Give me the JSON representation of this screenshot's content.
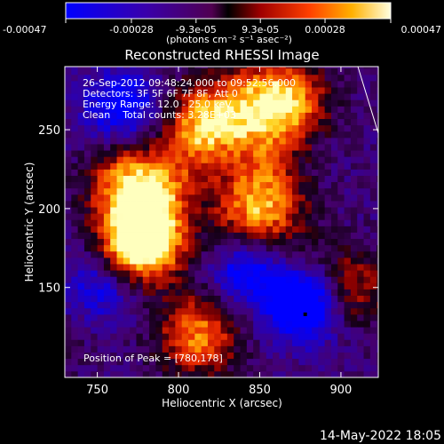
{
  "colorbar": {
    "ticks": [
      "-0.00047",
      "-0.00028",
      "-9.3e-05",
      "9.3e-05",
      "0.00028",
      "0.00047"
    ],
    "tick_values": [
      -0.00047,
      -0.00028,
      -9.3e-05,
      9.3e-05,
      0.00028,
      0.00047
    ],
    "range": [
      -0.00047,
      0.00047
    ],
    "unit_label": "(photons cm⁻² s⁻¹ asec⁻²)"
  },
  "chart_data": {
    "type": "heatmap",
    "title": "Reconstructed RHESSI Image",
    "xlabel": "Heliocentric X (arcsec)",
    "ylabel": "Heliocentric Y (arcsec)",
    "xlim": [
      730,
      923
    ],
    "ylim": [
      93,
      290
    ],
    "x_ticks": [
      "750",
      "800",
      "850",
      "900"
    ],
    "x_tick_values": [
      750,
      800,
      850,
      900
    ],
    "y_ticks": [
      "150",
      "200",
      "250"
    ],
    "y_tick_values": [
      150,
      200,
      250
    ],
    "annotations": [
      "26-Sep-2012 09:48:24.000 to 09:52:56.000",
      "Detectors: 3F 5F 6F 7F 8F, Att 0",
      "Energy Range: 12.0 - 25.0 keV",
      "Clean    Total counts: 3.28E+03"
    ],
    "peak_label": "Position of Peak = [780,178]",
    "peak": [
      780,
      178
    ],
    "bright_regions": [
      {
        "x": 780,
        "y": 178,
        "level": 1.0
      },
      {
        "x": 770,
        "y": 215,
        "level": 0.85
      },
      {
        "x": 818,
        "y": 255,
        "level": 0.8
      },
      {
        "x": 865,
        "y": 268,
        "level": 0.95
      },
      {
        "x": 845,
        "y": 200,
        "level": 0.7
      },
      {
        "x": 812,
        "y": 120,
        "level": 0.75
      },
      {
        "x": 905,
        "y": 150,
        "level": 0.55
      }
    ],
    "dark_regions": [
      {
        "x": 878,
        "y": 140,
        "level": -1.0
      },
      {
        "x": 752,
        "y": 150,
        "level": -0.7
      },
      {
        "x": 765,
        "y": 265,
        "level": -0.6
      },
      {
        "x": 842,
        "y": 160,
        "level": -0.55
      }
    ]
  },
  "footer": {
    "timestamp": "14-May-2022 18:05"
  }
}
